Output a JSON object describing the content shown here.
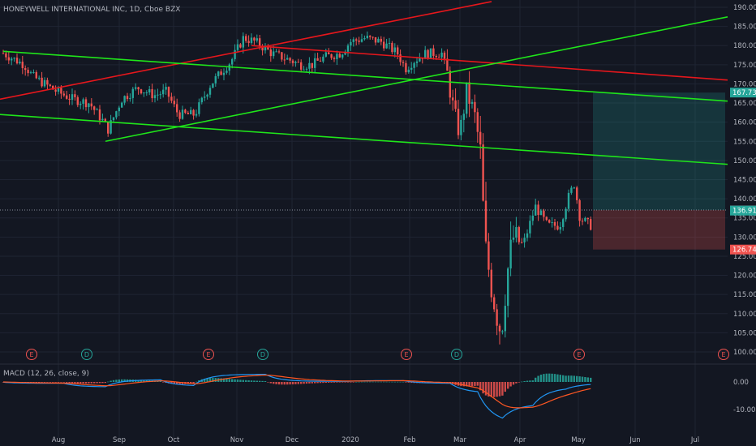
{
  "chart_data": {
    "type": "candlestick",
    "title": "HONEYWELL INTERNATIONAL INC, 1D, Cboe BZX",
    "colors": {
      "background": "#131722",
      "grid": "#1f2433",
      "up": "#26a69a",
      "down": "#ef5350",
      "trend_red": "#e5171c",
      "trend_green": "#1fe51a",
      "target_zone": "#26a69a",
      "stop_zone": "#ef5350",
      "axis_text": "#b2b5be",
      "macd_line": "#2196f3",
      "signal_line": "#ff5722"
    },
    "price_axis": {
      "ylim": [
        97,
        192
      ],
      "ticks": [
        "190.00",
        "185.00",
        "180.00",
        "175.00",
        "170.00",
        "165.00",
        "160.00",
        "155.00",
        "150.00",
        "145.00",
        "140.00",
        "135.00",
        "130.00",
        "125.00",
        "120.00",
        "115.00",
        "110.00",
        "105.00",
        "100.00"
      ],
      "badges": [
        {
          "value": 167.73,
          "label": "167.73",
          "color": "#26a69a"
        },
        {
          "value": 137.05,
          "label": "137.05",
          "color": "#363a45"
        },
        {
          "value": 136.91,
          "label": "136.91",
          "color": "#26a69a"
        },
        {
          "value": 126.74,
          "label": "126.74",
          "color": "#ef5350"
        }
      ]
    },
    "time_axis": {
      "labels": [
        "Aug",
        "Sep",
        "Oct",
        "Nov",
        "Dec",
        "2020",
        "Feb",
        "Mar",
        "Apr",
        "May",
        "Jun",
        "Jul"
      ]
    },
    "events": [
      "E",
      "D",
      "E",
      "D",
      "E",
      "D",
      "E",
      "E"
    ],
    "position": {
      "entry": 137.05,
      "target": 167.73,
      "stop": 126.74
    },
    "macd": {
      "label": "MACD (12, 26, close, 9)",
      "ticks": [
        "0.00",
        "-10.00"
      ],
      "ylim": [
        -17,
        4
      ]
    }
  }
}
